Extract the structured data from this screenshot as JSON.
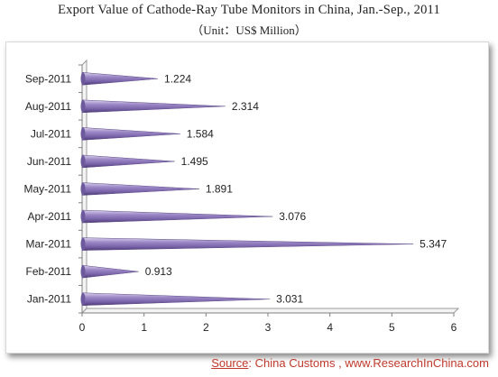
{
  "title": "Export Value of Cathode-Ray Tube Monitors in China, Jan.-Sep., 2011",
  "subtitle": "（Unit：US$ Million）",
  "source": {
    "label": "Source",
    "text": ":  China Customs , www.ResearchInChina.com"
  },
  "colors": {
    "bar": "#8b76b8",
    "bar_dark": "#4b3a73",
    "bar_light": "#d9d0ec",
    "source": "#c0392b"
  },
  "chart_data": {
    "type": "bar",
    "orientation": "horizontal",
    "categories": [
      "Jan-2011",
      "Feb-2011",
      "Mar-2011",
      "Apr-2011",
      "May-2011",
      "Jun-2011",
      "Jul-2011",
      "Aug-2011",
      "Sep-2011"
    ],
    "values": [
      3.031,
      0.913,
      5.347,
      3.076,
      1.891,
      1.495,
      1.584,
      2.314,
      1.224
    ],
    "value_labels": [
      "3.031",
      "0.913",
      "5.347",
      "3.076",
      "1.891",
      "1.495",
      "1.584",
      "2.314",
      "1.224"
    ],
    "x_ticks": [
      "0",
      "1",
      "2",
      "3",
      "4",
      "5",
      "6"
    ],
    "xlim": [
      0,
      6
    ],
    "grid": false,
    "legend": "none"
  }
}
